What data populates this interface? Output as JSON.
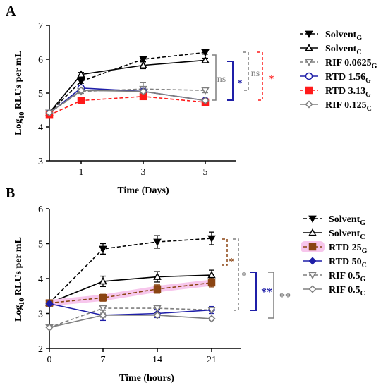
{
  "chart_data": [
    {
      "panel": "A",
      "type": "line",
      "xlabel": "Time (Days)",
      "ylabel_main": "Log",
      "ylabel_sub": "10",
      "ylabel_rest": " RLUs per mL",
      "x_ticks": [
        "1",
        "3",
        "5"
      ],
      "y_ticks": [
        "3",
        "4",
        "5",
        "6",
        "7"
      ],
      "ylim": [
        3,
        7
      ],
      "series": [
        {
          "name": "Solvent",
          "sub": "G",
          "color": "#000000",
          "dash": true,
          "marker": "tri-down-filled",
          "x": [
            0,
            1,
            3,
            5
          ],
          "y": [
            4.42,
            5.35,
            6.0,
            6.2
          ],
          "err": [
            0.03,
            0.06,
            0.06,
            0.05
          ]
        },
        {
          "name": "Solvent",
          "sub": "C",
          "color": "#000000",
          "dash": false,
          "marker": "tri-up-open",
          "x": [
            0,
            1,
            3,
            5
          ],
          "y": [
            4.42,
            5.55,
            5.82,
            5.97
          ],
          "err": [
            0.03,
            0.06,
            0.1,
            0.06
          ]
        },
        {
          "name": "RIF 0.0625",
          "sub": "G",
          "color": "#7f7f7f",
          "dash": true,
          "marker": "tri-down-open",
          "x": [
            0,
            1,
            3,
            5
          ],
          "y": [
            4.42,
            5.05,
            5.12,
            5.08
          ],
          "err": [
            0.03,
            0.06,
            0.2,
            0.07
          ]
        },
        {
          "name": "RTD 1.56",
          "sub": "G",
          "color": "#1f1fa8",
          "dash": false,
          "marker": "circle-open",
          "x": [
            0,
            1,
            3,
            5
          ],
          "y": [
            4.4,
            5.15,
            5.05,
            4.78
          ],
          "err": [
            0.03,
            0.06,
            0.06,
            0.05
          ]
        },
        {
          "name": "RTD 3.13",
          "sub": "G",
          "color": "#ff1a1a",
          "dash": true,
          "marker": "square-filled",
          "x": [
            0,
            1,
            3,
            5
          ],
          "y": [
            4.35,
            4.78,
            4.9,
            4.73
          ],
          "err": [
            0.03,
            0.05,
            0.06,
            0.05
          ]
        },
        {
          "name": "RIF 0.125",
          "sub": "C",
          "color": "#7f7f7f",
          "dash": false,
          "marker": "diamond-open",
          "x": [
            0,
            1,
            3,
            5
          ],
          "y": [
            4.42,
            5.08,
            5.05,
            4.78
          ],
          "err": [
            0.03,
            0.05,
            0.05,
            0.04
          ]
        }
      ],
      "annotations": [
        "ns",
        "*",
        "ns",
        "*"
      ]
    },
    {
      "panel": "B",
      "type": "line",
      "xlabel": "Time (hours)",
      "ylabel_main": "Log",
      "ylabel_sub": "10",
      "ylabel_rest": " RLUs per mL",
      "x_ticks": [
        "0",
        "7",
        "14",
        "21"
      ],
      "y_ticks": [
        "2",
        "3",
        "4",
        "5",
        "6"
      ],
      "ylim": [
        2,
        6
      ],
      "series": [
        {
          "name": "Solvent",
          "sub": "G",
          "color": "#000000",
          "dash": true,
          "marker": "tri-down-filled",
          "x": [
            0,
            7,
            14,
            21
          ],
          "y": [
            3.3,
            4.85,
            5.05,
            5.15
          ],
          "err": [
            0.05,
            0.15,
            0.18,
            0.18
          ]
        },
        {
          "name": "Solvent",
          "sub": "C",
          "color": "#000000",
          "dash": false,
          "marker": "tri-up-open",
          "x": [
            0,
            7,
            14,
            21
          ],
          "y": [
            3.3,
            3.92,
            4.05,
            4.1
          ],
          "err": [
            0.05,
            0.15,
            0.15,
            0.14
          ]
        },
        {
          "name": "RTD 25",
          "sub": "G",
          "color": "#8b4513",
          "dash": true,
          "marker": "square-filled",
          "x": [
            0,
            7,
            14,
            21
          ],
          "y": [
            3.3,
            3.45,
            3.7,
            3.88
          ],
          "err": [
            0.05,
            0.1,
            0.12,
            0.12
          ]
        },
        {
          "name": "RTD 50",
          "sub": "C",
          "color": "#1f1fa8",
          "dash": false,
          "marker": "diamond-filled",
          "x": [
            0,
            7,
            14,
            21
          ],
          "y": [
            3.28,
            2.95,
            3.0,
            3.1
          ],
          "err": [
            0.05,
            0.15,
            0.12,
            0.1
          ]
        },
        {
          "name": "RIF 0.5",
          "sub": "G",
          "color": "#7f7f7f",
          "dash": true,
          "marker": "tri-down-open",
          "x": [
            0,
            7,
            14,
            21
          ],
          "y": [
            2.6,
            3.15,
            3.15,
            3.1
          ],
          "err": [
            0.05,
            0.06,
            0.05,
            0.05
          ]
        },
        {
          "name": "RIF 0.5",
          "sub": "C",
          "color": "#7f7f7f",
          "dash": false,
          "marker": "diamond-open",
          "x": [
            0,
            7,
            14,
            21
          ],
          "y": [
            2.6,
            2.95,
            2.95,
            2.85
          ],
          "err": [
            0.05,
            0.06,
            0.05,
            0.05
          ]
        }
      ],
      "annotations": [
        "*",
        "*",
        "**",
        "**"
      ]
    }
  ]
}
